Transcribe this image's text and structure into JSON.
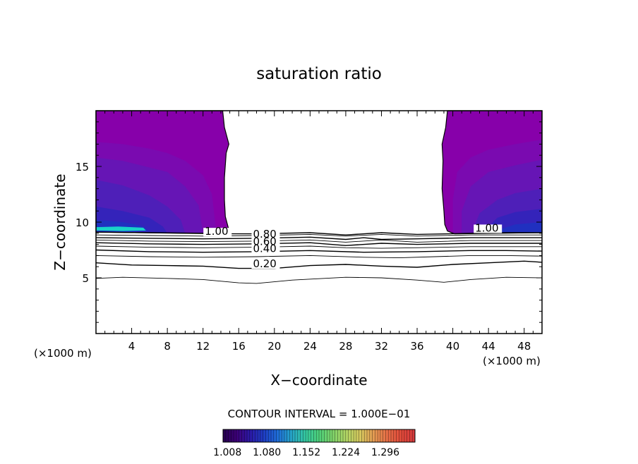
{
  "chart_data": {
    "type": "contour",
    "title": "saturation ratio",
    "xlabel": "X−coordinate",
    "ylabel": "Z−coordinate",
    "x_unit_left": "(×1000 m)",
    "x_unit_right": "(×1000 m)",
    "xlim": [
      0,
      50
    ],
    "ylim": [
      0,
      20
    ],
    "x_ticks": [
      4,
      8,
      12,
      16,
      20,
      24,
      28,
      32,
      36,
      40,
      44,
      48
    ],
    "x_tick_labels": [
      "4",
      "8",
      "12",
      "16",
      "20",
      "24",
      "28",
      "32",
      "36",
      "40",
      "44",
      "48"
    ],
    "y_ticks": [
      5,
      10,
      15
    ],
    "y_tick_labels": [
      "5",
      "10",
      "15"
    ],
    "contour_interval_text": "CONTOUR INTERVAL = 1.000E−01",
    "contour_levels": [
      0.1,
      0.2,
      0.3,
      0.4,
      0.5,
      0.6,
      0.7,
      0.8,
      0.9,
      1.0
    ],
    "contour_labels": [
      {
        "text": "1.00",
        "x": 12.2,
        "z": 8.85
      },
      {
        "text": "0.80",
        "x": 17.6,
        "z": 8.6
      },
      {
        "text": "0.60",
        "x": 17.6,
        "z": 7.95
      },
      {
        "text": "0.40",
        "x": 17.6,
        "z": 7.3
      },
      {
        "text": "0.20",
        "x": 17.6,
        "z": 5.95
      },
      {
        "text": "1.00",
        "x": 42.5,
        "z": 9.15
      }
    ],
    "lines": [
      {
        "level": 0.1,
        "points": [
          [
            0,
            4.95
          ],
          [
            3,
            5.05
          ],
          [
            8,
            4.95
          ],
          [
            12,
            4.85
          ],
          [
            16,
            4.55
          ],
          [
            18,
            4.5
          ],
          [
            22,
            4.8
          ],
          [
            28,
            5.05
          ],
          [
            32,
            5.0
          ],
          [
            36,
            4.8
          ],
          [
            39,
            4.6
          ],
          [
            42,
            4.85
          ],
          [
            46,
            5.05
          ],
          [
            50,
            5.0
          ]
        ]
      },
      {
        "level": 0.2,
        "points": [
          [
            0,
            6.35
          ],
          [
            4,
            6.15
          ],
          [
            8,
            6.1
          ],
          [
            12,
            6.05
          ],
          [
            16,
            5.85
          ],
          [
            20,
            5.85
          ],
          [
            24,
            6.1
          ],
          [
            28,
            6.2
          ],
          [
            32,
            6.05
          ],
          [
            36,
            5.95
          ],
          [
            40,
            6.2
          ],
          [
            44,
            6.35
          ],
          [
            48,
            6.5
          ],
          [
            50,
            6.4
          ]
        ]
      },
      {
        "level": 0.3,
        "points": [
          [
            0,
            7.0
          ],
          [
            6,
            6.9
          ],
          [
            12,
            6.85
          ],
          [
            18,
            6.9
          ],
          [
            24,
            7.0
          ],
          [
            30,
            6.85
          ],
          [
            34,
            6.8
          ],
          [
            38,
            6.9
          ],
          [
            42,
            7.0
          ],
          [
            46,
            7.0
          ],
          [
            50,
            6.95
          ]
        ]
      },
      {
        "level": 0.4,
        "points": [
          [
            0,
            7.5
          ],
          [
            6,
            7.35
          ],
          [
            12,
            7.3
          ],
          [
            18,
            7.35
          ],
          [
            24,
            7.45
          ],
          [
            30,
            7.3
          ],
          [
            36,
            7.35
          ],
          [
            42,
            7.45
          ],
          [
            46,
            7.45
          ],
          [
            50,
            7.4
          ]
        ]
      },
      {
        "level": 0.5,
        "points": [
          [
            0,
            7.85
          ],
          [
            6,
            7.75
          ],
          [
            12,
            7.7
          ],
          [
            18,
            7.75
          ],
          [
            24,
            7.85
          ],
          [
            28,
            7.7
          ],
          [
            32,
            7.65
          ],
          [
            36,
            7.7
          ],
          [
            42,
            7.8
          ],
          [
            50,
            7.8
          ]
        ]
      },
      {
        "level": 0.6,
        "points": [
          [
            0,
            8.15
          ],
          [
            6,
            8.05
          ],
          [
            12,
            8.0
          ],
          [
            18,
            8.05
          ],
          [
            24,
            8.15
          ],
          [
            28,
            7.9
          ],
          [
            32,
            8.1
          ],
          [
            36,
            8.0
          ],
          [
            42,
            8.1
          ],
          [
            50,
            8.1
          ]
        ]
      },
      {
        "level": 0.7,
        "points": [
          [
            0,
            8.4
          ],
          [
            6,
            8.3
          ],
          [
            12,
            8.25
          ],
          [
            18,
            8.3
          ],
          [
            24,
            8.4
          ],
          [
            28,
            8.2
          ],
          [
            32,
            8.4
          ],
          [
            36,
            8.2
          ],
          [
            42,
            8.35
          ],
          [
            50,
            8.35
          ]
        ]
      },
      {
        "level": 0.8,
        "points": [
          [
            0,
            8.6
          ],
          [
            6,
            8.55
          ],
          [
            12,
            8.5
          ],
          [
            18,
            8.55
          ],
          [
            24,
            8.65
          ],
          [
            28,
            8.45
          ],
          [
            30,
            8.6
          ],
          [
            32,
            8.45
          ],
          [
            36,
            8.5
          ],
          [
            42,
            8.6
          ],
          [
            50,
            8.6
          ]
        ]
      },
      {
        "level": 0.9,
        "points": [
          [
            0,
            8.85
          ],
          [
            6,
            8.8
          ],
          [
            12,
            8.75
          ],
          [
            18,
            8.8
          ],
          [
            24,
            8.9
          ],
          [
            28,
            8.75
          ],
          [
            32,
            8.9
          ],
          [
            36,
            8.75
          ],
          [
            42,
            8.85
          ],
          [
            50,
            8.85
          ]
        ]
      },
      {
        "level": 1.0,
        "points": [
          [
            0,
            9.1
          ],
          [
            6,
            9.05
          ],
          [
            12,
            9.0
          ],
          [
            14.6,
            8.95
          ],
          [
            18,
            8.95
          ],
          [
            24,
            9.05
          ],
          [
            28,
            8.85
          ],
          [
            32,
            9.05
          ],
          [
            36,
            8.9
          ],
          [
            39.5,
            8.95
          ],
          [
            42,
            9.0
          ],
          [
            46,
            9.05
          ],
          [
            50,
            9.05
          ]
        ]
      }
    ],
    "supersaturated_regions": [
      {
        "side": "left",
        "boundary": [
          [
            0,
            20
          ],
          [
            14.2,
            20
          ],
          [
            14.4,
            18.5
          ],
          [
            14.9,
            17.0
          ],
          [
            14.6,
            16.2
          ],
          [
            14.4,
            14.0
          ],
          [
            14.4,
            12.0
          ],
          [
            14.5,
            10.5
          ],
          [
            14.9,
            9.3
          ],
          [
            14.7,
            8.95
          ],
          [
            0,
            9.1
          ]
        ]
      },
      {
        "side": "right",
        "boundary": [
          [
            50,
            20
          ],
          [
            39.4,
            20
          ],
          [
            39.2,
            18.5
          ],
          [
            38.8,
            17.0
          ],
          [
            38.9,
            15.5
          ],
          [
            38.8,
            13.0
          ],
          [
            39.0,
            11.0
          ],
          [
            39.1,
            9.8
          ],
          [
            39.4,
            9.2
          ],
          [
            40.2,
            8.95
          ],
          [
            50,
            9.05
          ]
        ]
      }
    ],
    "colorbar": {
      "min": 1.0,
      "max": 1.35,
      "tick_labels": [
        "1.008",
        "1.080",
        "1.152",
        "1.224",
        "1.296"
      ],
      "colors": [
        "#25004e",
        "#3d0078",
        "#2b1aa8",
        "#1e3ec4",
        "#1f6fd8",
        "#26a4c8",
        "#35c8a0",
        "#4ed07a",
        "#7ed36a",
        "#b2d464",
        "#d6c85e",
        "#e39a52",
        "#e66d46",
        "#e24a3a",
        "#d4383c"
      ]
    },
    "fill_colors": {
      "base": "#8700aa",
      "band2": "#7a0ab0",
      "band3": "#6615b5",
      "band4": "#4e1fb8",
      "band5": "#3423ba",
      "band6": "#2030c0",
      "jet": "#19d2c8"
    }
  }
}
